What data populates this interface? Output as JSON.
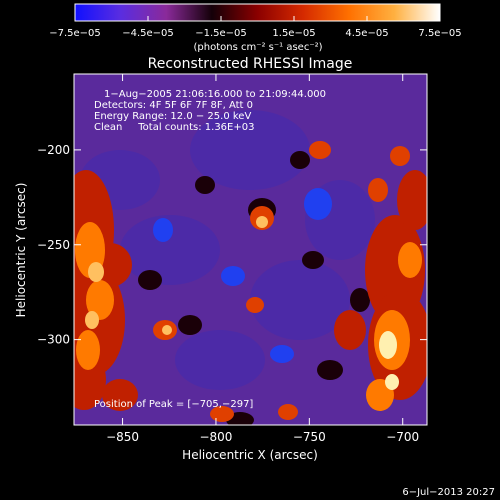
{
  "chart_data": {
    "type": "heatmap",
    "title": "Reconstructed RHESSI Image",
    "xlabel": "Heliocentric X (arcsec)",
    "ylabel": "Heliocentric Y (arcsec)",
    "xlim": [
      -876,
      -687
    ],
    "ylim": [
      -345,
      -160
    ],
    "x_ticks": [
      -850,
      -800,
      -750,
      -700
    ],
    "x_tick_labels": [
      "−850",
      "−800",
      "−750",
      "−700"
    ],
    "y_ticks": [
      -200,
      -250,
      -300
    ],
    "y_tick_labels": [
      "−200",
      "−250",
      "−300"
    ],
    "colorbar": {
      "range": [
        -7.5e-05,
        7.5e-05
      ],
      "ticks": [
        -7.5e-05,
        -4.5e-05,
        -1.5e-05,
        1.5e-05,
        4.5e-05,
        7.5e-05
      ],
      "tick_labels": [
        "−7.5e−05",
        "−4.5e−05",
        "−1.5e−05",
        "1.5e−05",
        "4.5e−05",
        "7.5e−05"
      ],
      "unit_label": "(photons cm⁻² s⁻¹ asec⁻²)",
      "colors": [
        "#1010ff",
        "#5a2de0",
        "#8a2a9a",
        "#140008",
        "#8b0000",
        "#d52a00",
        "#ff7000",
        "#ffb040",
        "#ffffff"
      ]
    },
    "annotations": [
      "1−Aug−2005 21:06:16.000 to 21:09:44.000",
      "Detectors: 4F 5F 6F 7F 8F, Att 0",
      "Energy Range: 12.0 − 25.0 keV",
      "Clean     Total counts: 1.36E+03"
    ],
    "peak_label": "Position of Peak = [−705,−297]",
    "peak": [
      -705,
      -297
    ],
    "date_stamp": "6−Jul−2013 20:27",
    "grid": false
  }
}
